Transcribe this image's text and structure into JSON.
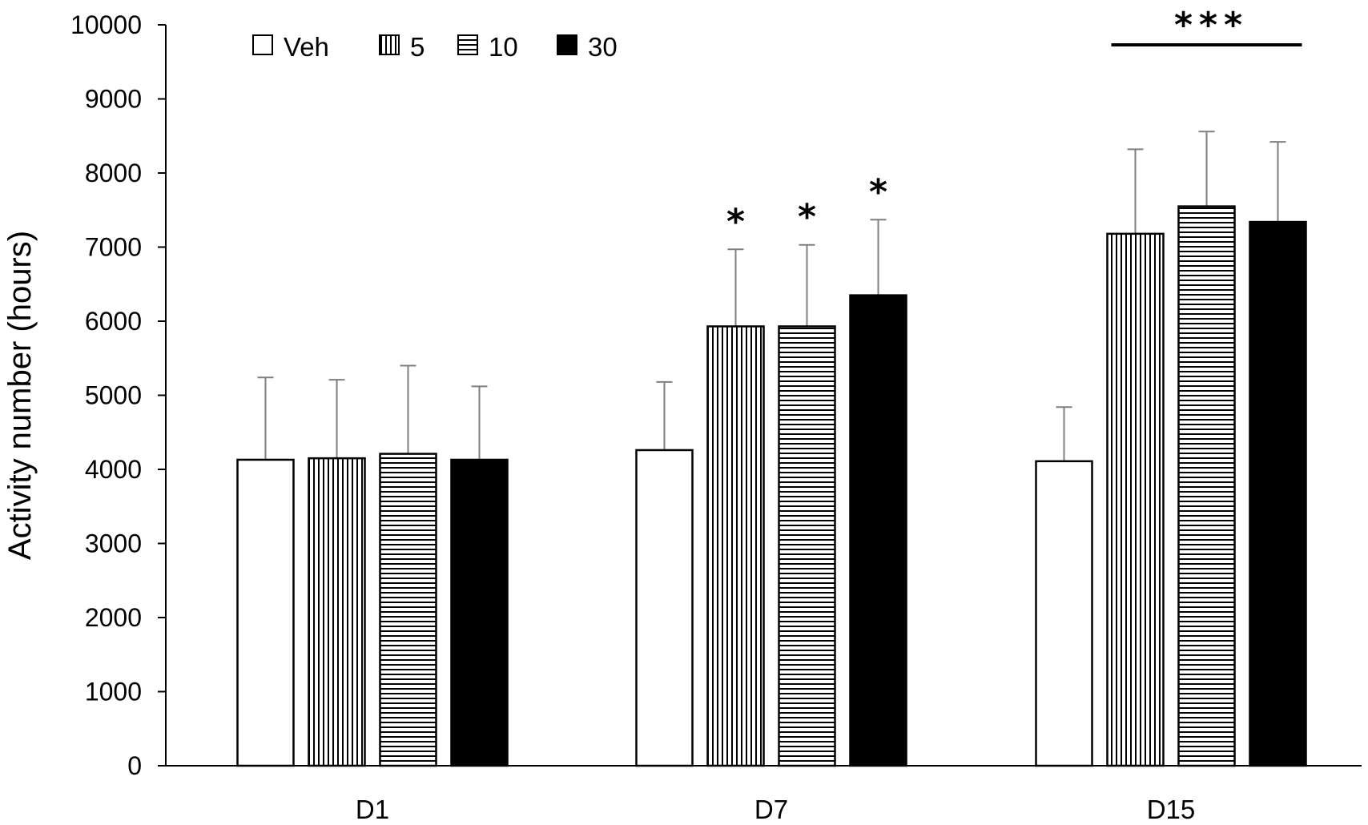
{
  "chart_data": {
    "type": "bar",
    "categories": [
      "D1",
      "D7",
      "D15"
    ],
    "series": [
      {
        "name": "Veh",
        "pattern": "white",
        "values": [
          4130,
          4260,
          4110
        ],
        "errors": [
          1110,
          920,
          730
        ]
      },
      {
        "name": "5",
        "pattern": "vertical-lines",
        "values": [
          4150,
          5930,
          7180
        ],
        "errors": [
          1060,
          1040,
          1140
        ]
      },
      {
        "name": "10",
        "pattern": "horizontal-lines",
        "values": [
          4210,
          5930,
          7550
        ],
        "errors": [
          1190,
          1100,
          1010
        ]
      },
      {
        "name": "30",
        "pattern": "black",
        "values": [
          4130,
          6350,
          7340
        ],
        "errors": [
          990,
          1020,
          1080
        ]
      }
    ],
    "ylabel": "Activity number (hours)",
    "ylim": [
      0,
      10000
    ],
    "yticks": [
      "0",
      "1000",
      "2000",
      "3000",
      "4000",
      "5000",
      "6000",
      "7000",
      "8000",
      "9000",
      "10000"
    ],
    "legend_position": "top-left",
    "grid": false,
    "annotations": [
      {
        "text": "*",
        "category": "D7",
        "series": "5"
      },
      {
        "text": "*",
        "category": "D7",
        "series": "10"
      },
      {
        "text": "*",
        "category": "D7",
        "series": "30"
      },
      {
        "text": "***",
        "category": "D15",
        "series": "5-30",
        "bracket": true
      }
    ],
    "colors": {
      "bar_fill_white": "#ffffff",
      "bar_fill_black": "#000000",
      "stroke": "#000000",
      "error_bar": "#7f7f7f"
    }
  }
}
